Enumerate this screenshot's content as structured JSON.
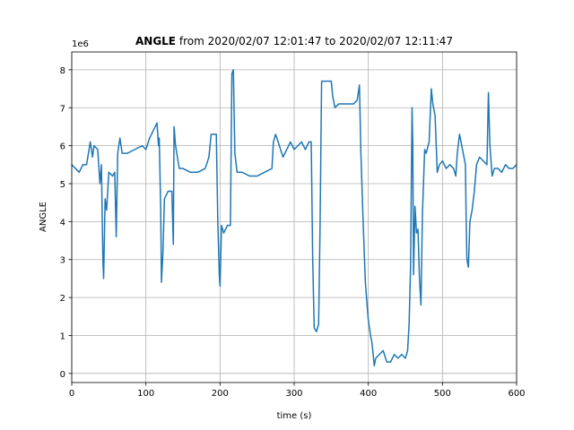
{
  "chart_data": {
    "type": "line",
    "title_bold": "ANGLE",
    "title": "from 2020/02/07 12:01:47 to 2020/02/07 12:11:47",
    "xlabel": "time (s)",
    "ylabel": "ANGLE",
    "y_offset_text": "1e6",
    "x": [
      0,
      5,
      10,
      15,
      20,
      25,
      28,
      30,
      35,
      38,
      40,
      42,
      43,
      45,
      47,
      50,
      55,
      58,
      60,
      62,
      65,
      68,
      75,
      85,
      95,
      100,
      105,
      110,
      115,
      117,
      118,
      120,
      121,
      123,
      125,
      130,
      135,
      137,
      138,
      140,
      145,
      150,
      160,
      170,
      180,
      185,
      188,
      195,
      197,
      199,
      200,
      202,
      205,
      210,
      214,
      216,
      218,
      220,
      223,
      230,
      240,
      250,
      260,
      270,
      272,
      275,
      280,
      285,
      290,
      295,
      300,
      310,
      315,
      320,
      323,
      325,
      327,
      330,
      333,
      335,
      337,
      345,
      350,
      352,
      355,
      360,
      370,
      380,
      385,
      388,
      390,
      393,
      396,
      400,
      403,
      405,
      408,
      410,
      415,
      420,
      425,
      430,
      435,
      440,
      445,
      450,
      453,
      455,
      457,
      459,
      460,
      461,
      463,
      465,
      467,
      469,
      471,
      473,
      476,
      478,
      482,
      485,
      487,
      490,
      493,
      496,
      500,
      505,
      510,
      515,
      518,
      520,
      523,
      525,
      528,
      531,
      532,
      533,
      535,
      537,
      540,
      543,
      546,
      550,
      555,
      560,
      562,
      564,
      567,
      570,
      575,
      580,
      585,
      590,
      595,
      600
    ],
    "series": [
      {
        "name": "ANGLE",
        "color": "#1f77b4",
        "values": [
          5.5,
          5.4,
          5.3,
          5.5,
          5.5,
          6.1,
          5.7,
          6.0,
          5.9,
          5.0,
          5.5,
          3.0,
          2.5,
          4.6,
          4.3,
          5.3,
          5.2,
          5.3,
          3.6,
          5.8,
          6.2,
          5.8,
          5.8,
          5.9,
          6.0,
          5.9,
          6.2,
          6.4,
          6.6,
          6.0,
          6.2,
          4.3,
          2.4,
          3.2,
          4.6,
          4.8,
          4.8,
          3.4,
          6.5,
          6.0,
          5.4,
          5.4,
          5.3,
          5.3,
          5.4,
          5.7,
          6.3,
          6.3,
          4.0,
          2.6,
          2.3,
          3.9,
          3.7,
          3.9,
          3.9,
          7.9,
          8.0,
          5.8,
          5.3,
          5.3,
          5.2,
          5.2,
          5.3,
          5.4,
          6.1,
          6.3,
          6.0,
          5.7,
          5.9,
          6.1,
          5.9,
          6.1,
          5.9,
          6.1,
          6.1,
          3.0,
          1.2,
          1.1,
          1.3,
          4.0,
          7.7,
          7.7,
          7.7,
          7.3,
          7.0,
          7.1,
          7.1,
          7.1,
          7.2,
          7.6,
          5.8,
          4.0,
          2.4,
          1.4,
          1.0,
          0.8,
          0.2,
          0.4,
          0.5,
          0.6,
          0.3,
          0.3,
          0.5,
          0.4,
          0.5,
          0.4,
          0.6,
          1.3,
          2.8,
          7.0,
          6.0,
          2.6,
          4.4,
          3.7,
          3.8,
          2.5,
          1.8,
          4.2,
          5.9,
          5.8,
          6.1,
          7.5,
          7.1,
          6.8,
          5.3,
          5.5,
          5.6,
          5.4,
          5.5,
          5.4,
          5.2,
          5.8,
          6.3,
          6.1,
          5.8,
          5.5,
          4.0,
          3.0,
          2.8,
          4.0,
          4.3,
          4.8,
          5.5,
          5.7,
          5.6,
          5.5,
          7.4,
          6.0,
          5.2,
          5.4,
          5.4,
          5.3,
          5.5,
          5.4,
          5.4,
          5.5
        ]
      }
    ],
    "xlim": [
      0,
      600
    ],
    "xticks": [
      0,
      100,
      200,
      300,
      400,
      500,
      600
    ],
    "ylim": [
      -0.24,
      8.47
    ],
    "yticks": [
      0,
      1,
      2,
      3,
      4,
      5,
      6,
      7,
      8
    ],
    "grid": true
  }
}
